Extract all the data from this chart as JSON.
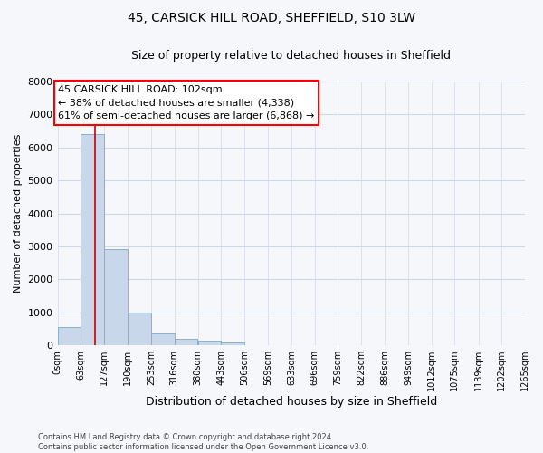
{
  "title_line1": "45, CARSICK HILL ROAD, SHEFFIELD, S10 3LW",
  "title_line2": "Size of property relative to detached houses in Sheffield",
  "xlabel": "Distribution of detached houses by size in Sheffield",
  "ylabel": "Number of detached properties",
  "bar_color": "#c8d8ea",
  "bar_edge_color": "#8ab0cc",
  "bar_values": [
    560,
    6400,
    2920,
    980,
    370,
    185,
    140,
    85,
    0,
    0,
    0,
    0,
    0,
    0,
    0,
    0,
    0,
    0,
    0,
    0
  ],
  "bin_edges": [
    0,
    63,
    127,
    190,
    253,
    316,
    380,
    443,
    506,
    569,
    633,
    696,
    759,
    822,
    886,
    949,
    1012,
    1075,
    1139,
    1202,
    1265
  ],
  "tick_labels": [
    "0sqm",
    "63sqm",
    "127sqm",
    "190sqm",
    "253sqm",
    "316sqm",
    "380sqm",
    "443sqm",
    "506sqm",
    "569sqm",
    "633sqm",
    "696sqm",
    "759sqm",
    "822sqm",
    "886sqm",
    "949sqm",
    "1012sqm",
    "1075sqm",
    "1139sqm",
    "1202sqm",
    "1265sqm"
  ],
  "ylim": [
    0,
    8000
  ],
  "yticks": [
    0,
    1000,
    2000,
    3000,
    4000,
    5000,
    6000,
    7000,
    8000
  ],
  "red_line_x": 102,
  "annotation_lines": [
    "45 CARSICK HILL ROAD: 102sqm",
    "← 38% of detached houses are smaller (4,338)",
    "61% of semi-detached houses are larger (6,868) →"
  ],
  "annotation_box_color": "white",
  "annotation_box_edge_color": "red",
  "red_line_color": "#cc0000",
  "footer_line1": "Contains HM Land Registry data © Crown copyright and database right 2024.",
  "footer_line2": "Contains public sector information licensed under the Open Government Licence v3.0.",
  "grid_color": "#d0d8e8",
  "background_color": "#f5f7fa",
  "title1_fontsize": 10,
  "title2_fontsize": 9,
  "ann_fontsize": 8,
  "tick_fontsize": 7,
  "ylabel_fontsize": 8,
  "xlabel_fontsize": 9
}
